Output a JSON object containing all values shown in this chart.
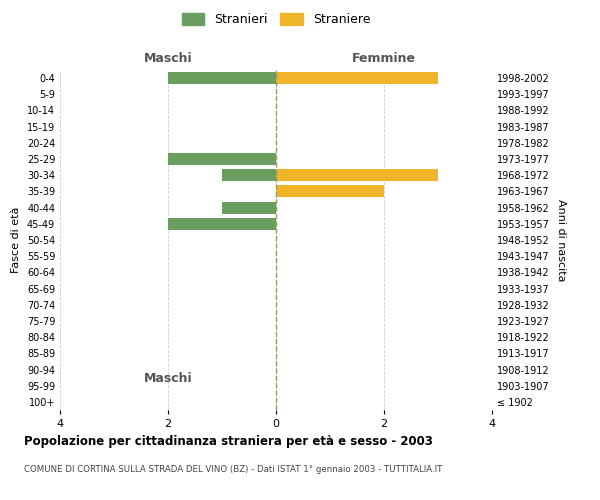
{
  "age_groups": [
    "100+",
    "95-99",
    "90-94",
    "85-89",
    "80-84",
    "75-79",
    "70-74",
    "65-69",
    "60-64",
    "55-59",
    "50-54",
    "45-49",
    "40-44",
    "35-39",
    "30-34",
    "25-29",
    "20-24",
    "15-19",
    "10-14",
    "5-9",
    "0-4"
  ],
  "birth_years": [
    "≤ 1902",
    "1903-1907",
    "1908-1912",
    "1913-1917",
    "1918-1922",
    "1923-1927",
    "1928-1932",
    "1933-1937",
    "1938-1942",
    "1943-1947",
    "1948-1952",
    "1953-1957",
    "1958-1962",
    "1963-1967",
    "1968-1972",
    "1973-1977",
    "1978-1982",
    "1983-1987",
    "1988-1992",
    "1993-1997",
    "1998-2002"
  ],
  "males": [
    0,
    0,
    0,
    0,
    0,
    0,
    0,
    0,
    0,
    0,
    0,
    2,
    1,
    0,
    1,
    2,
    0,
    0,
    0,
    0,
    2
  ],
  "females": [
    0,
    0,
    0,
    0,
    0,
    0,
    0,
    0,
    0,
    0,
    0,
    0,
    0,
    2,
    3,
    0,
    0,
    0,
    0,
    0,
    3
  ],
  "male_color": "#6a9e5e",
  "female_color": "#f0b429",
  "title": "Popolazione per cittadinanza straniera per età e sesso - 2003",
  "subtitle": "COMUNE DI CORTINA SULLA STRADA DEL VINO (BZ) - Dati ISTAT 1° gennaio 2003 - TUTTITALIA.IT",
  "ylabel_left": "Fasce di età",
  "ylabel_right": "Anni di nascita",
  "legend_stranieri": "Stranieri",
  "legend_straniere": "Straniere",
  "maschi_label": "Maschi",
  "femmine_label": "Femmine",
  "bg_color": "#ffffff",
  "grid_color": "#cccccc",
  "bar_height": 0.75
}
